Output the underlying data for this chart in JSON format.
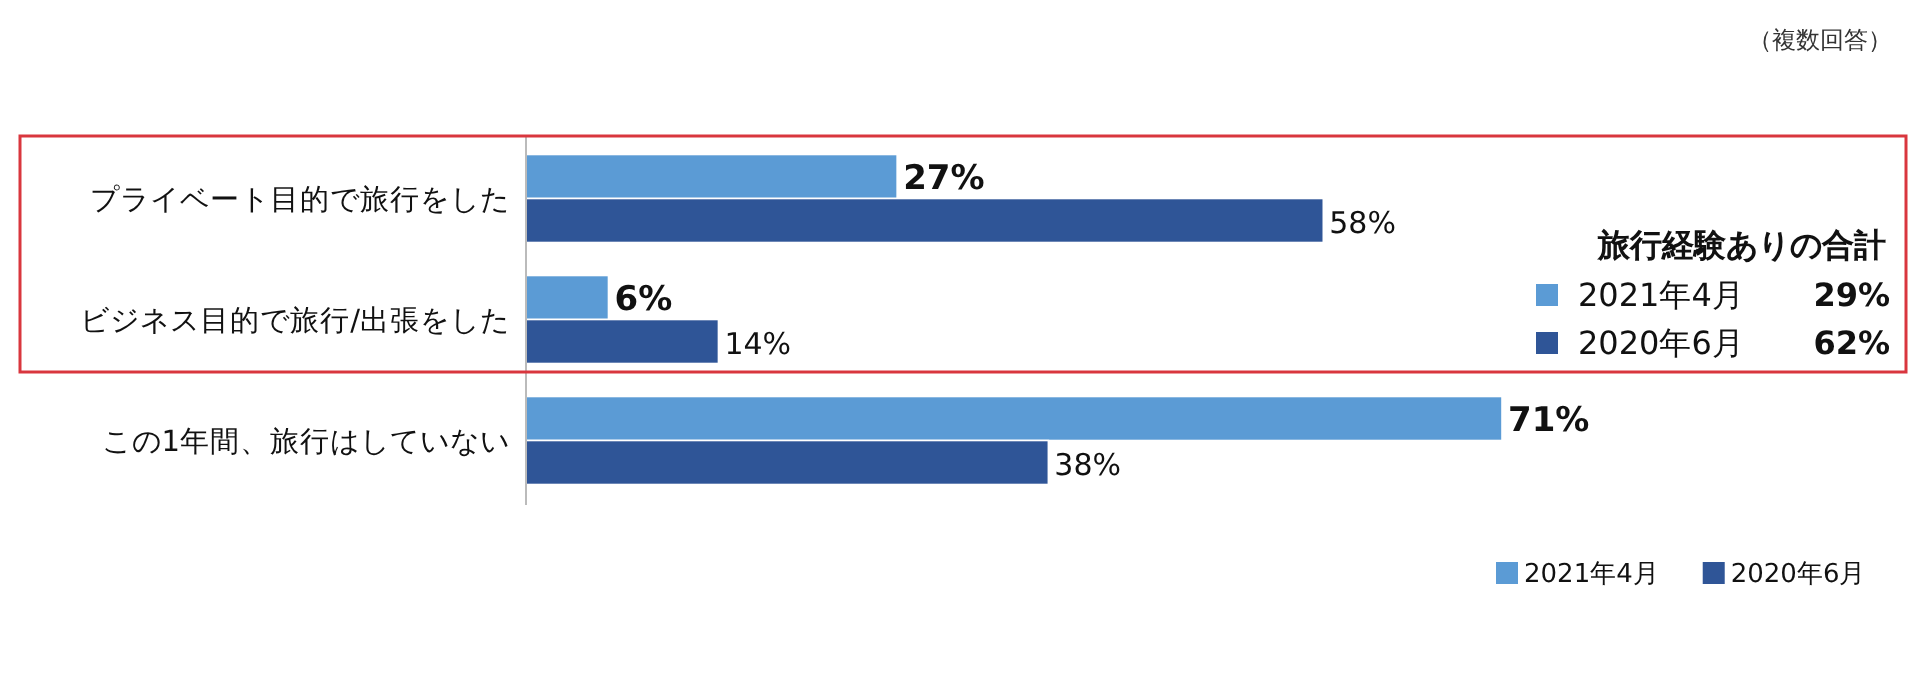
{
  "chart_data": {
    "type": "bar",
    "orientation": "horizontal",
    "categories": [
      "プライベート目的で旅行をした",
      "ビジネス目的で旅行/出張をした",
      "この1年間、旅行はしていない"
    ],
    "series": [
      {
        "name": "2021年4月",
        "color": "#5b9bd5",
        "values": [
          27,
          6,
          71
        ],
        "value_labels": [
          "27%",
          "6%",
          "71%"
        ]
      },
      {
        "name": "2020年6月",
        "color": "#2f5597",
        "values": [
          58,
          14,
          38
        ],
        "value_labels": [
          "58%",
          "14%",
          "38%"
        ]
      }
    ],
    "legend": "bottom right",
    "annotations": [
      "（複数回答）",
      "旅行経験ありの合計",
      "2021年4月",
      "29%",
      "2020年6月",
      "62%"
    ]
  }
}
